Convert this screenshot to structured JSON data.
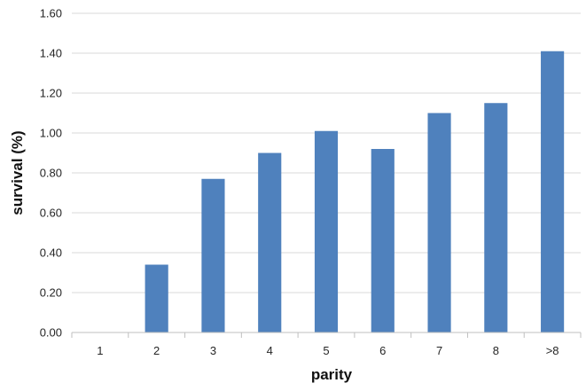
{
  "chart_data": {
    "type": "bar",
    "categories": [
      "1",
      "2",
      "3",
      "4",
      "5",
      "6",
      "7",
      "8",
      ">8"
    ],
    "series": [
      {
        "values": [
          0.0,
          0.34,
          0.77,
          0.9,
          1.01,
          0.92,
          1.1,
          1.15,
          1.41
        ]
      }
    ],
    "title": "",
    "xlabel": "parity",
    "ylabel": "survival (%)",
    "ylim": [
      0,
      1.6
    ],
    "yticks": [
      "0.00",
      "0.20",
      "0.40",
      "0.60",
      "0.80",
      "1.00",
      "1.20",
      "1.40",
      "1.60"
    ],
    "grid": true,
    "legend": "none",
    "bar_color": "#4f81bd"
  }
}
